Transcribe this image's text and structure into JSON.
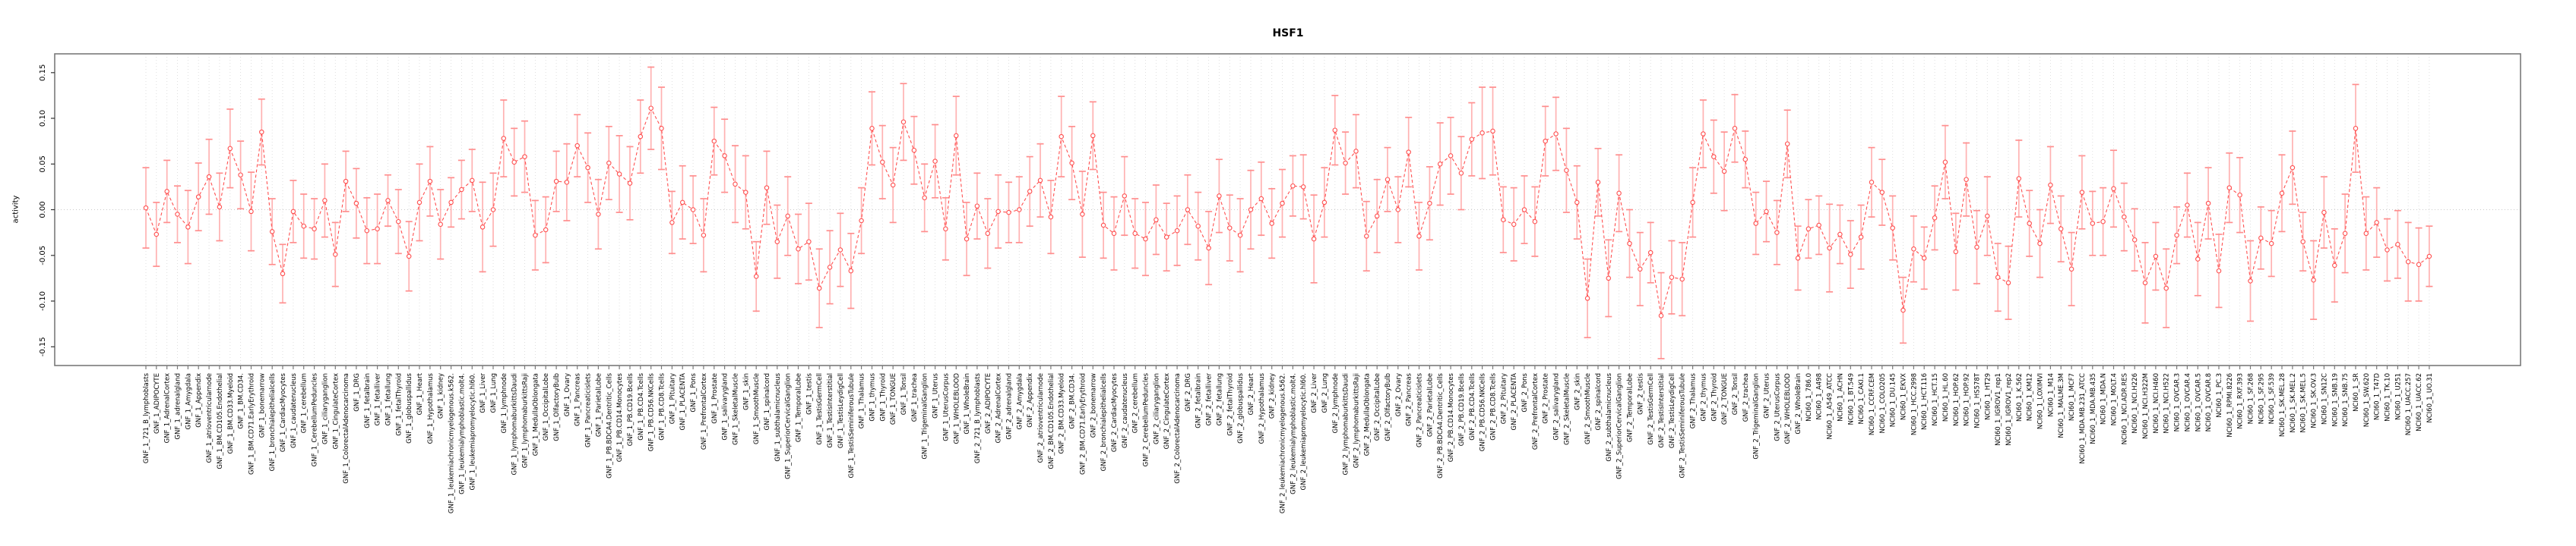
{
  "chart_data": {
    "type": "line",
    "title": "HSF1",
    "ylabel": "activity",
    "xlabel": "",
    "ylim": [
      -0.17,
      0.17
    ],
    "yticks": [
      -0.15,
      -0.1,
      -0.05,
      0.0,
      0.05,
      0.1,
      0.15
    ],
    "ytick_labels": [
      "-0.15",
      "-0.10",
      "-0.05",
      "0.00",
      "0.05",
      "0.10",
      "0.15"
    ],
    "legend": "none",
    "grid": "dotted vertical line per category; dotted horizontal line at y=0",
    "marker": "open-circle",
    "line_style": "dashed",
    "error_bars": true,
    "colors": {
      "series": "#ff5050",
      "marker": "#ff5050",
      "error_stem": "#ffb2b2",
      "error_cap": "#ff8e8e",
      "gridline": "#dcdcdc",
      "zero_line": "#c9c9c9",
      "box_border": "#7a7a7a",
      "text": "#000000"
    },
    "categories": [
      "GNF_1_721_B_lymphoblasts",
      "GNF_1_ADIPOCYTE",
      "GNF_1_AdrenalCortex",
      "GNF_1_adrenalgland",
      "GNF_1_Amygdala",
      "GNF_1_Appendix",
      "GNF_1_atrioventricularnode",
      "GNF_1_BM.CD105.Endothelial",
      "GNF_1_BM.CD33.Myeloid",
      "GNF_1_BM.CD34.",
      "GNF_1_BM.CD71.EarlyErythroid",
      "GNF_1_bonemarrow",
      "GNF_1_bronchialepithelialcells",
      "GNF_1_CardiacMyocytes",
      "GNF_1_caudatenucleus",
      "GNF_1_cerebellum",
      "GNF_1_CerebellumPeduncles",
      "GNF_1_ciliaryganglion",
      "GNF_1_CingulateCortex",
      "GNF_1_ColorectalAdenocarcinoma",
      "GNF_1_DRG",
      "GNF_1_fetalbrain",
      "GNF_1_fetalliver",
      "GNF_1_fetallung",
      "GNF_1_fetalThyroid",
      "GNF_1_globuspallidus",
      "GNF_1_Heart",
      "GNF_1_Hypothalamus",
      "GNF_1_kidney",
      "GNF_1_leukemiachronicmyelogenous.k562.",
      "GNF_1_leukemialymphoblastic.molt4.",
      "GNF_1_leukemiapromyelocytic.hl60.",
      "GNF_1_Liver",
      "GNF_1_Lung",
      "GNF_1_lymphnode",
      "GNF_1_lymphomaburkittsDaudi",
      "GNF_1_lymphomaburkittsRaji",
      "GNF_1_MedullaOblongata",
      "GNF_1_OccipitalLobe",
      "GNF_1_OlfactoryBulb",
      "GNF_1_Ovary",
      "GNF_1_Pancreas",
      "GNF_1_Pancreaticislets",
      "GNF_1_ParietalLobe",
      "GNF_1_PB.BDCA4.Dentritic_Cells",
      "GNF_1_PB.CD14.Monocytes",
      "GNF_1_PB.CD19.Bcells",
      "GNF_1_PB.CD4.Tcells",
      "GNF_1_PB.CD56.NKCells",
      "GNF_1_PB.CD8.Tcells",
      "GNF_1_Pituitary",
      "GNF_1_PLACENTA",
      "GNF_1_Pons",
      "GNF_1_PrefrontalCortex",
      "GNF_1_Prostate",
      "GNF_1_salivarygland",
      "GNF_1_SkeletalMuscle",
      "GNF_1_skin",
      "GNF_1_SmoothMuscle",
      "GNF_1_spinalcord",
      "GNF_1_subthalamicnucleus",
      "GNF_1_SuperiorCervicalGanglion",
      "GNF_1_TemporalLobe",
      "GNF_1_testis",
      "GNF_1_TestisGermCell",
      "GNF_1_TestisInterstitial",
      "GNF_1_TestisLeydigCell",
      "GNF_1_TestisSeminiferousTubule",
      "GNF_1_Thalamus",
      "GNF_1_thymus",
      "GNF_1_Thyroid",
      "GNF_1_TONGUE",
      "GNF_1_Tonsil",
      "GNF_1_trachea",
      "GNF_1_TrigeminalGanglion",
      "GNF_1_Uterus",
      "GNF_1_UterusCorpus",
      "GNF_1_WHOLEBLOOD",
      "GNF_1_WholeBrain",
      "GNF_2_721_B_lymphoblasts",
      "GNF_2_ADIPOCYTE",
      "GNF_2_AdrenalCortex",
      "GNF_2_adrenalgland",
      "GNF_2_Amygdala",
      "GNF_2_Appendix",
      "GNF_2_atrioventricularnode",
      "GNF_2_BM.CD105.Endothelial",
      "GNF_2_BM.CD33.Myeloid",
      "GNF_2_BM.CD34.",
      "GNF_2_BM.CD71.EarlyErythroid",
      "GNF_2_bonemarrow",
      "GNF_2_bronchialepithelialcells",
      "GNF_2_CardiacMyocytes",
      "GNF_2_caudatenucleus",
      "GNF_2_cerebellum",
      "GNF_2_CerebellumPeduncles",
      "GNF_2_ciliaryganglion",
      "GNF_2_CingulateCortex",
      "GNF_2_ColorectalAdenocarcinoma",
      "GNF_2_DRG",
      "GNF_2_fetalbrain",
      "GNF_2_fetalliver",
      "GNF_2_fetallung",
      "GNF_2_fetalThyroid",
      "GNF_2_globuspallidus",
      "GNF_2_Heart",
      "GNF_2_Hypothalamus",
      "GNF_2_kidney",
      "GNF_2_leukemiachronicmyelogenous.k562.",
      "GNF_2_leukemialymphoblastic.molt4.",
      "GNF_2_leukemiapromyelocytic.hl60.",
      "GNF_2_Liver",
      "GNF_2_Lung",
      "GNF_2_lymphnode",
      "GNF_2_lymphomaburkittsDaudi",
      "GNF_2_lymphomaburkittsRaji",
      "GNF_2_MedullaOblongata",
      "GNF_2_OccipitalLobe",
      "GNF_2_OlfactoryBulb",
      "GNF_2_Ovary",
      "GNF_2_Pancreas",
      "GNF_2_Pancreaticislets",
      "GNF_2_ParietalLobe",
      "GNF_2_PB.BDCA4.Dentritic_Cells",
      "GNF_2_PB.CD14.Monocytes",
      "GNF_2_PB.CD19.Bcells",
      "GNF_2_PB.CD4.Tcells",
      "GNF_2_PB.CD56.NKCells",
      "GNF_2_PB.CD8.Tcells",
      "GNF_2_Pituitary",
      "GNF_2_PLACENTA",
      "GNF_2_Pons",
      "GNF_2_PrefrontalCortex",
      "GNF_2_Prostate",
      "GNF_2_salivarygland",
      "GNF_2_SkeletalMuscle",
      "GNF_2_skin",
      "GNF_2_SmoothMuscle",
      "GNF_2_spinalcord",
      "GNF_2_subthalamicnucleus",
      "GNF_2_SuperiorCervicalGanglion",
      "GNF_2_TemporalLobe",
      "GNF_2_testis",
      "GNF_2_TestisGermCell",
      "GNF_2_TestisInterstitial",
      "GNF_2_TestisLeydigCell",
      "GNF_2_TestisSeminiferousTubule",
      "GNF_2_Thalamus",
      "GNF_2_thymus",
      "GNF_2_Thyroid",
      "GNF_2_TONGUE",
      "GNF_2_Tonsil",
      "GNF_2_trachea",
      "GNF_2_TrigeminalGanglion",
      "GNF_2_Uterus",
      "GNF_2_UterusCorpus",
      "GNF_2_WHOLEBLOOD",
      "GNF_2_WholeBrain",
      "NCI60_1_786.0",
      "NCI60_1_A498",
      "NCI60_1_A549_ATCC",
      "NCI60_1_ACHN",
      "NCI60_1_BT.549",
      "NCI60_1_CAKI.1",
      "NCI60_1_CCRF.CEM",
      "NCI60_1_COLO205",
      "NCI60_1_DU.145",
      "NCI60_1_EKVX",
      "NCI60_1_HCC.2998",
      "NCI60_1_HCT.116",
      "NCI60_1_HCT.15",
      "NCI60_1_HL.60",
      "NCI60_1_HOP.62",
      "NCI60_1_HOP.92",
      "NCI60_1_HS578T",
      "NCI60_1_HT29",
      "NCI60_1_IGROV1_rep1",
      "NCI60_1_IGROV1_rep2",
      "NCI60_1_K.562",
      "NCI60_1_KM12",
      "NCI60_1_LOXIMVI",
      "NCI60_1_M14",
      "NCI60_1_MALME.3M",
      "NCI60_1_MCF7",
      "NCI60_1_MDA.MB.231_ATCC",
      "NCI60_1_MDA.MB.435",
      "NCI60_1_MDA.N",
      "NCI60_1_MOLT.4",
      "NCI60_1_NCI.ADR.RES",
      "NCI60_1_NCI.H226",
      "NCI60_1_NCI.H322M",
      "NCI60_1_NCI.H460",
      "NCI60_1_NCI.H522",
      "NCI60_1_OVCAR.3",
      "NCI60_1_OVCAR.4",
      "NCI60_1_OVCAR.5",
      "NCI60_1_OVCAR.8",
      "NCI60_1_PC.3",
      "NCI60_1_RPMI.8226",
      "NCI60_1_RXF.393",
      "NCI60_1_SF.268",
      "NCI60_1_SF.295",
      "NCI60_1_SF.539",
      "NCI60_1_SK.MEL.28",
      "NCI60_1_SK.MEL.2",
      "NCI60_1_SK.MEL.5",
      "NCI60_1_SK.OV.3",
      "NCI60_1_SN12C",
      "NCI60_1_SNB.19",
      "NCI60_1_SNB.75",
      "NCI60_1_SR",
      "NCI60_1_SW.620",
      "NCI60_1_T47D",
      "NCI60_1_TK.10",
      "NCI60_1_U251",
      "NCI60_1_UACC.257",
      "NCI60_1_UACC.62",
      "NCI60_1_UO.31"
    ],
    "values": [
      0.002,
      -0.027,
      0.02,
      -0.005,
      -0.019,
      0.014,
      0.036,
      0.003,
      0.067,
      0.038,
      -0.002,
      0.085,
      -0.024,
      -0.07,
      -0.002,
      -0.018,
      -0.021,
      0.01,
      -0.049,
      0.031,
      0.007,
      -0.023,
      -0.021,
      0.01,
      -0.013,
      -0.051,
      0.008,
      0.031,
      -0.016,
      0.008,
      0.022,
      0.032,
      -0.019,
      0.0,
      0.078,
      0.052,
      0.058,
      -0.028,
      -0.022,
      0.031,
      0.03,
      0.07,
      0.046,
      -0.005,
      0.051,
      0.039,
      0.029,
      0.08,
      0.111,
      0.089,
      -0.014,
      0.008,
      0.0,
      -0.028,
      0.075,
      0.059,
      0.028,
      0.019,
      -0.073,
      0.024,
      -0.035,
      -0.007,
      -0.043,
      -0.035,
      -0.086,
      -0.063,
      -0.044,
      -0.067,
      -0.012,
      0.089,
      0.052,
      0.027,
      0.096,
      0.065,
      0.013,
      0.053,
      -0.021,
      0.081,
      -0.032,
      0.004,
      -0.026,
      -0.002,
      -0.003,
      0.0,
      0.02,
      0.032,
      -0.008,
      0.08,
      0.051,
      -0.005,
      0.081,
      -0.017,
      -0.026,
      0.015,
      -0.026,
      -0.032,
      -0.011,
      -0.03,
      -0.023,
      0.0,
      -0.018,
      -0.042,
      0.015,
      -0.02,
      -0.028,
      0.0,
      0.012,
      -0.015,
      0.007,
      0.026,
      0.025,
      -0.032,
      0.008,
      0.087,
      0.051,
      0.064,
      -0.029,
      -0.007,
      0.033,
      0.0,
      0.063,
      -0.029,
      0.007,
      0.05,
      0.059,
      0.04,
      0.077,
      0.084,
      0.086,
      -0.011,
      -0.016,
      0.0,
      -0.013,
      0.075,
      0.083,
      0.043,
      0.008,
      -0.097,
      0.03,
      -0.075,
      0.018,
      -0.037,
      -0.065,
      -0.047,
      -0.116,
      -0.074,
      -0.076,
      0.008,
      0.083,
      0.058,
      0.042,
      0.089,
      0.055,
      -0.015,
      -0.002,
      -0.025,
      0.072,
      -0.053,
      -0.021,
      -0.017,
      -0.042,
      -0.027,
      -0.049,
      -0.03,
      0.03,
      0.019,
      -0.02,
      -0.11,
      -0.043,
      -0.053,
      -0.009,
      0.052,
      -0.046,
      0.033,
      -0.041,
      -0.007,
      -0.074,
      -0.08,
      0.034,
      -0.015,
      -0.037,
      0.027,
      -0.021,
      -0.065,
      0.019,
      -0.015,
      -0.013,
      0.023,
      -0.008,
      -0.033,
      -0.08,
      -0.051,
      -0.086,
      -0.028,
      0.005,
      -0.054,
      0.007,
      -0.067,
      0.024,
      0.016,
      -0.078,
      -0.031,
      -0.037,
      0.018,
      0.046,
      -0.035,
      -0.077,
      -0.003,
      -0.061,
      -0.026,
      0.089,
      -0.026,
      -0.014,
      -0.044,
      -0.038,
      -0.057,
      -0.06,
      -0.051
    ],
    "err": [
      0.044,
      0.035,
      0.034,
      0.031,
      0.04,
      0.037,
      0.041,
      0.037,
      0.043,
      0.037,
      0.043,
      0.036,
      0.036,
      0.032,
      0.034,
      0.035,
      0.033,
      0.04,
      0.035,
      0.033,
      0.038,
      0.036,
      0.038,
      0.028,
      0.035,
      0.038,
      0.042,
      0.038,
      0.038,
      0.027,
      0.032,
      0.034,
      0.049,
      0.04,
      0.042,
      0.037,
      0.039,
      0.038,
      0.036,
      0.033,
      0.042,
      0.034,
      0.038,
      0.038,
      0.04,
      0.042,
      0.04,
      0.04,
      0.045,
      0.045,
      0.034,
      0.04,
      0.037,
      0.04,
      0.037,
      0.04,
      0.042,
      0.04,
      0.038,
      0.04,
      0.04,
      0.043,
      0.038,
      0.042,
      0.043,
      0.04,
      0.04,
      0.041,
      0.036,
      0.04,
      0.04,
      0.041,
      0.042,
      0.037,
      0.037,
      0.04,
      0.034,
      0.043,
      0.04,
      0.036,
      0.038,
      0.04,
      0.033,
      0.036,
      0.038,
      0.04,
      0.04,
      0.044,
      0.04,
      0.047,
      0.037,
      0.036,
      0.04,
      0.043,
      0.038,
      0.04,
      0.038,
      0.037,
      0.038,
      0.038,
      0.037,
      0.04,
      0.04,
      0.036,
      0.04,
      0.043,
      0.04,
      0.038,
      0.037,
      0.033,
      0.035,
      0.048,
      0.038,
      0.038,
      0.034,
      0.04,
      0.038,
      0.04,
      0.035,
      0.036,
      0.038,
      0.037,
      0.04,
      0.045,
      0.042,
      0.04,
      0.04,
      0.05,
      0.048,
      0.036,
      0.04,
      0.037,
      0.038,
      0.038,
      0.04,
      0.046,
      0.04,
      0.043,
      0.037,
      0.042,
      0.042,
      0.037,
      0.04,
      0.033,
      0.047,
      0.04,
      0.04,
      0.038,
      0.037,
      0.04,
      0.043,
      0.037,
      0.031,
      0.034,
      0.033,
      0.035,
      0.037,
      0.035,
      0.032,
      0.032,
      0.048,
      0.032,
      0.037,
      0.035,
      0.038,
      0.036,
      0.035,
      0.036,
      0.036,
      0.034,
      0.035,
      0.04,
      0.042,
      0.04,
      0.04,
      0.043,
      0.037,
      0.04,
      0.042,
      0.036,
      0.037,
      0.042,
      0.036,
      0.04,
      0.04,
      0.035,
      0.037,
      0.042,
      0.037,
      0.034,
      0.044,
      0.037,
      0.043,
      0.031,
      0.035,
      0.04,
      0.039,
      0.04,
      0.038,
      0.041,
      0.044,
      0.034,
      0.036,
      0.042,
      0.04,
      0.032,
      0.043,
      0.039,
      0.04,
      0.043,
      0.048,
      0.04,
      0.038,
      0.034,
      0.037,
      0.043,
      0.04,
      0.033
    ]
  }
}
